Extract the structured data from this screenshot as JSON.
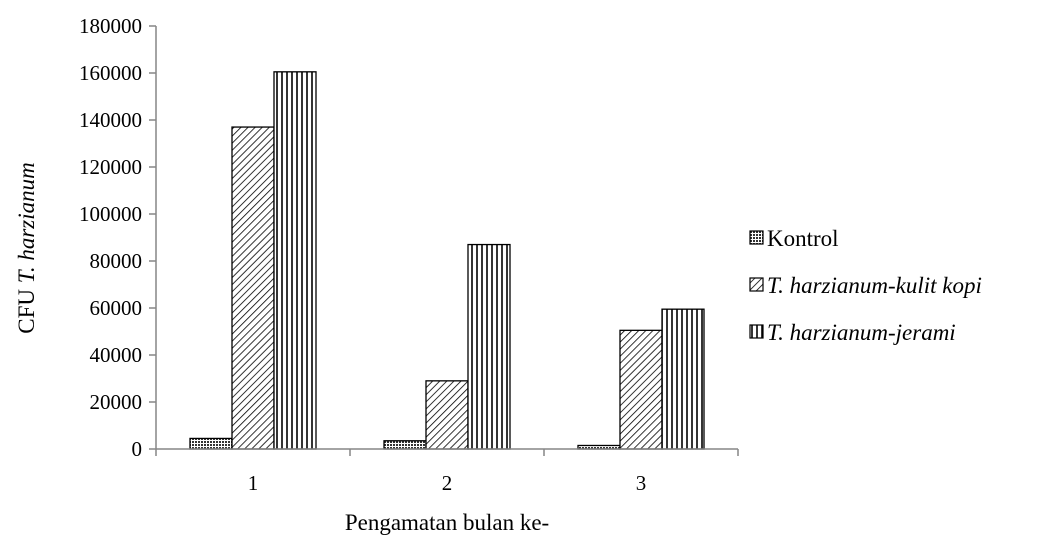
{
  "chart_data": {
    "type": "bar",
    "title": "",
    "xlabel": "Pengamatan bulan ke-",
    "ylabel_prefix": "CFU ",
    "ylabel_italic": "T. harzianum",
    "categories": [
      "1",
      "2",
      "3"
    ],
    "ylim": [
      0,
      180000
    ],
    "yticks": [
      0,
      20000,
      40000,
      60000,
      80000,
      100000,
      120000,
      140000,
      160000,
      180000
    ],
    "grid": false,
    "legend_position": "right",
    "series": [
      {
        "name": "Kontrol",
        "name_italic": false,
        "pattern": "crosshatch-dense",
        "values": [
          4500,
          3500,
          1500
        ]
      },
      {
        "name": "T. harzianum-kulit kopi",
        "name_italic": true,
        "pattern": "diagonal-back",
        "values": [
          137000,
          29000,
          50500
        ]
      },
      {
        "name": "T. harzianum-jerami",
        "name_italic": true,
        "pattern": "vertical-lines",
        "values": [
          160500,
          87000,
          59500
        ]
      }
    ]
  }
}
